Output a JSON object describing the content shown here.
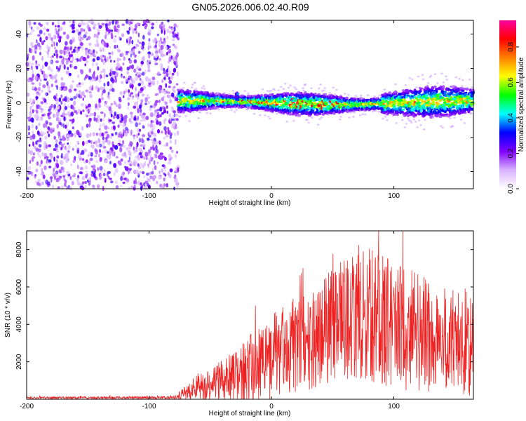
{
  "title": "GN05.2026.006.02.40.R09",
  "chart_data": [
    {
      "type": "heatmap",
      "name": "spectrogram",
      "xlabel": "Height of straight line (km)",
      "ylabel": "Frequency (Hz)",
      "xlim": [
        -200,
        165
      ],
      "ylim": [
        -50,
        48
      ],
      "xticks": [
        -200,
        -100,
        0,
        100
      ],
      "yticks": [
        -40,
        -20,
        0,
        20,
        40
      ],
      "noise_region_x": [
        -200,
        -76
      ],
      "signal_band": {
        "x_start": -76,
        "x_end": 165,
        "center_freq": 0,
        "half_width": 5,
        "spike_at_x": -28
      },
      "colorbar": {
        "label": "Normalized spectral amplitude",
        "range": [
          0.0,
          0.95
        ],
        "ticks": [
          0.0,
          0.2,
          0.4,
          0.6,
          0.8
        ],
        "colors": [
          "#ffffff",
          "#d9b3ff",
          "#8000ff",
          "#0000ff",
          "#00ffff",
          "#00ff00",
          "#ffff00",
          "#ff8000",
          "#ff0000",
          "#ff00a0"
        ]
      }
    },
    {
      "type": "line",
      "name": "snr",
      "xlabel": "Height of straight line (km)",
      "ylabel": "SNR (10 * v/v)",
      "xlim": [
        -200,
        165
      ],
      "ylim": [
        0,
        9000
      ],
      "xticks": [
        -200,
        -100,
        0,
        100
      ],
      "yticks": [
        2000,
        4000,
        6000,
        8000
      ],
      "color": "#ee2222",
      "envelope": [
        {
          "x": -200,
          "mean": 80,
          "amp": 60
        },
        {
          "x": -80,
          "mean": 90,
          "amp": 70
        },
        {
          "x": -72,
          "mean": 300,
          "amp": 300
        },
        {
          "x": -60,
          "mean": 700,
          "amp": 700
        },
        {
          "x": -40,
          "mean": 1000,
          "amp": 1100
        },
        {
          "x": -20,
          "mean": 1500,
          "amp": 1800
        },
        {
          "x": 0,
          "mean": 2300,
          "amp": 2300
        },
        {
          "x": 20,
          "mean": 2900,
          "amp": 2600
        },
        {
          "x": 40,
          "mean": 3600,
          "amp": 2900
        },
        {
          "x": 60,
          "mean": 4300,
          "amp": 3200
        },
        {
          "x": 80,
          "mean": 4500,
          "amp": 3600
        },
        {
          "x": 100,
          "mean": 4100,
          "amp": 3500
        },
        {
          "x": 120,
          "mean": 3500,
          "amp": 3200
        },
        {
          "x": 140,
          "mean": 3200,
          "amp": 2800
        },
        {
          "x": 165,
          "mean": 3000,
          "amp": 2900
        }
      ]
    }
  ]
}
